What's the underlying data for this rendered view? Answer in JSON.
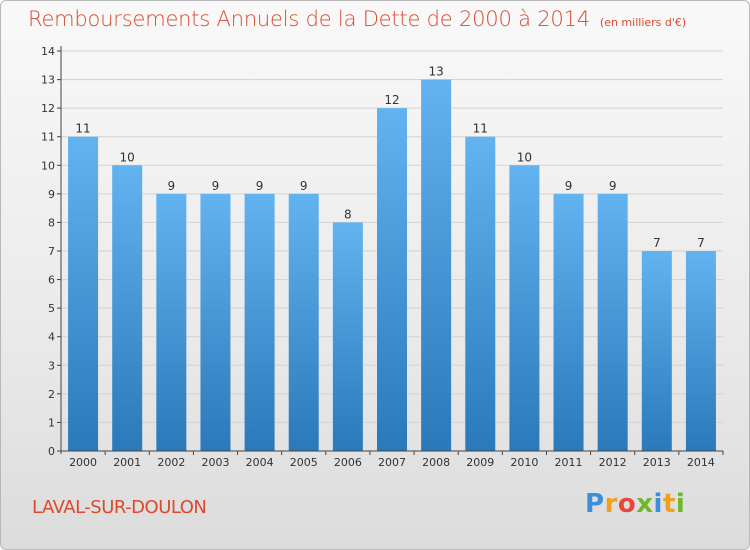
{
  "title": "Remboursements Annuels de la Dette de 2000 à 2014",
  "unit_note": "(en milliers d'€)",
  "location": "LAVAL-SUR-DOULON",
  "logo": {
    "text": "Proxiti",
    "letter_colors": [
      "#3a8fd8",
      "#f0a020",
      "#e8473b",
      "#6fb82a",
      "#3a8fd8",
      "#f0a020",
      "#6fb82a"
    ]
  },
  "colors": {
    "title": "#d94a2e",
    "bar_top": "#62b3ef",
    "bar_bottom": "#2a79ba",
    "grid": "#d2d2d2",
    "axis": "#444444"
  },
  "chart_data": {
    "type": "bar",
    "title": "Remboursements Annuels de la Dette de 2000 à 2014",
    "categories": [
      "2000",
      "2001",
      "2002",
      "2003",
      "2004",
      "2005",
      "2006",
      "2007",
      "2008",
      "2009",
      "2010",
      "2011",
      "2012",
      "2013",
      "2014"
    ],
    "values": [
      11,
      10,
      9,
      9,
      9,
      9,
      8,
      12,
      13,
      11,
      10,
      9,
      9,
      7,
      7
    ],
    "data_labels": [
      "11",
      "10",
      "9",
      "9",
      "9",
      "9",
      "8",
      "12",
      "13",
      "11",
      "10",
      "9",
      "9",
      "7",
      "7"
    ],
    "yticks": [
      "0",
      "1",
      "2",
      "3",
      "4",
      "5",
      "6",
      "7",
      "8",
      "9",
      "10",
      "11",
      "12",
      "13",
      "14"
    ],
    "ylim": [
      0,
      14
    ],
    "grid": true,
    "xlabel": "",
    "ylabel": ""
  }
}
